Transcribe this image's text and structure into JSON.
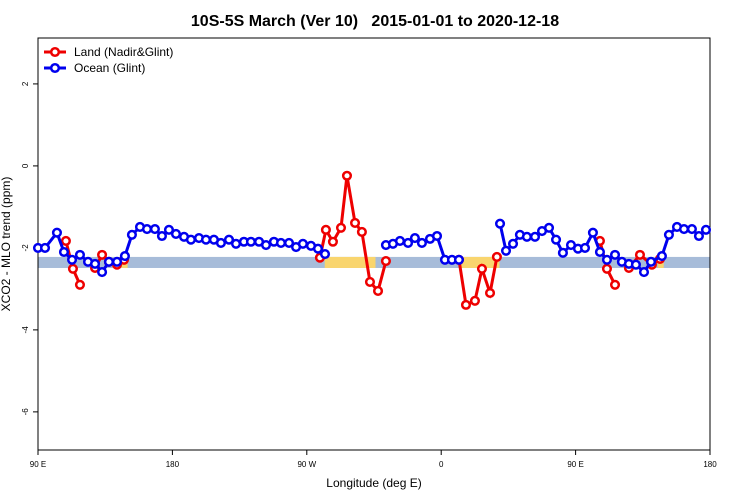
{
  "chart_data": {
    "type": "line",
    "title": "10S-5S March (Ver 10)   2015-01-01 to 2020-12-18",
    "xlabel": "Longitude (deg E)",
    "ylabel": "XCO2 - MLO trend (ppm)",
    "xlim": [
      90,
      540
    ],
    "ylim": [
      -6.93,
      3.12
    ],
    "xticks": [
      {
        "value": 90,
        "label": "90 E"
      },
      {
        "value": 180,
        "label": "180"
      },
      {
        "value": 270,
        "label": "90 W"
      },
      {
        "value": 360,
        "label": "0"
      },
      {
        "value": 450,
        "label": "90 E"
      },
      {
        "value": 540,
        "label": "180"
      }
    ],
    "yticks": [
      -6,
      -4,
      -2,
      0,
      2
    ],
    "legend": "top-left",
    "band": {
      "ylim": [
        -2.49,
        -2.22
      ],
      "color": "#a7bcd9"
    },
    "land_bands": {
      "color": "#f9d56e",
      "ranges": [
        [
          146,
          150
        ],
        [
          282,
          316
        ],
        [
          373,
          399
        ],
        [
          505,
          509
        ]
      ]
    },
    "series": [
      {
        "name": "Land (Nadir&Glint)",
        "color": "#ee0000",
        "x": [
          108.7,
          113.4,
          118.1,
          null,
          128.2,
          132.9,
          137.5,
          142.9,
          147.6,
          null,
          278.8,
          282.8,
          287.5,
          292.9,
          296.9,
          302.3,
          306.9,
          312.3,
          317.7,
          323.0,
          null,
          371.9,
          376.6,
          382.6,
          387.3,
          392.7,
          397.3,
          null,
          466.3,
          471.0,
          476.4,
          null,
          485.7,
          493.1,
          501.1,
          506.5
        ],
        "values": [
          -1.83,
          -2.51,
          -2.9,
          null,
          -2.49,
          -2.17,
          -2.34,
          -2.41,
          -2.29,
          null,
          -2.24,
          -1.56,
          -1.85,
          -1.51,
          -0.24,
          -1.39,
          -1.61,
          -2.83,
          -3.05,
          -2.32,
          null,
          -2.29,
          -3.39,
          -3.29,
          -2.51,
          -3.1,
          -2.22,
          null,
          -1.83,
          -2.51,
          -2.9,
          null,
          -2.49,
          -2.17,
          -2.41,
          -2.27
        ]
      },
      {
        "name": "Ocean (Glint)",
        "color": "#0000ee",
        "x": [
          90.0,
          94.7,
          102.7,
          107.4,
          112.8,
          118.1,
          123.5,
          128.2,
          132.9,
          137.5,
          142.9,
          148.2,
          152.9,
          158.3,
          163.0,
          168.3,
          173.0,
          177.7,
          182.4,
          187.8,
          192.4,
          197.8,
          202.5,
          207.8,
          212.5,
          217.9,
          222.6,
          227.9,
          232.6,
          238.0,
          242.7,
          248.0,
          252.7,
          258.1,
          262.8,
          267.4,
          272.8,
          277.5,
          282.2,
          null,
          323.0,
          327.7,
          332.4,
          337.8,
          342.4,
          347.1,
          352.5,
          357.2,
          362.5,
          367.2,
          371.9,
          null,
          399.4,
          403.4,
          408.1,
          412.7,
          417.4,
          422.8,
          427.5,
          432.2,
          436.9,
          441.5,
          446.9,
          451.6,
          456.3,
          461.6,
          466.3,
          471.0,
          476.4,
          481.0,
          485.7,
          490.4,
          495.8,
          500.5,
          507.8,
          512.5,
          517.9,
          522.6,
          527.9,
          532.6,
          537.3
        ],
        "values": [
          -2.0,
          -2.0,
          -1.63,
          -2.1,
          -2.29,
          -2.17,
          -2.34,
          -2.39,
          -2.59,
          -2.34,
          -2.34,
          -2.2,
          -1.68,
          -1.49,
          -1.54,
          -1.54,
          -1.71,
          -1.56,
          -1.66,
          -1.73,
          -1.8,
          -1.76,
          -1.8,
          -1.8,
          -1.88,
          -1.8,
          -1.9,
          -1.85,
          -1.85,
          -1.85,
          -1.93,
          -1.85,
          -1.88,
          -1.88,
          -1.98,
          -1.9,
          -1.95,
          -2.02,
          -2.15,
          null,
          -1.93,
          -1.9,
          -1.83,
          -1.88,
          -1.76,
          -1.88,
          -1.78,
          -1.71,
          -2.29,
          -2.29,
          -2.29,
          null,
          -1.41,
          -2.07,
          -1.9,
          -1.68,
          -1.73,
          -1.73,
          -1.59,
          -1.51,
          -1.8,
          -2.12,
          -1.93,
          -2.02,
          -2.0,
          -1.63,
          -2.1,
          -2.29,
          -2.17,
          -2.34,
          -2.39,
          -2.41,
          -2.59,
          -2.34,
          -2.2,
          -1.68,
          -1.49,
          -1.54,
          -1.54,
          -1.71,
          -1.56
        ]
      }
    ]
  }
}
